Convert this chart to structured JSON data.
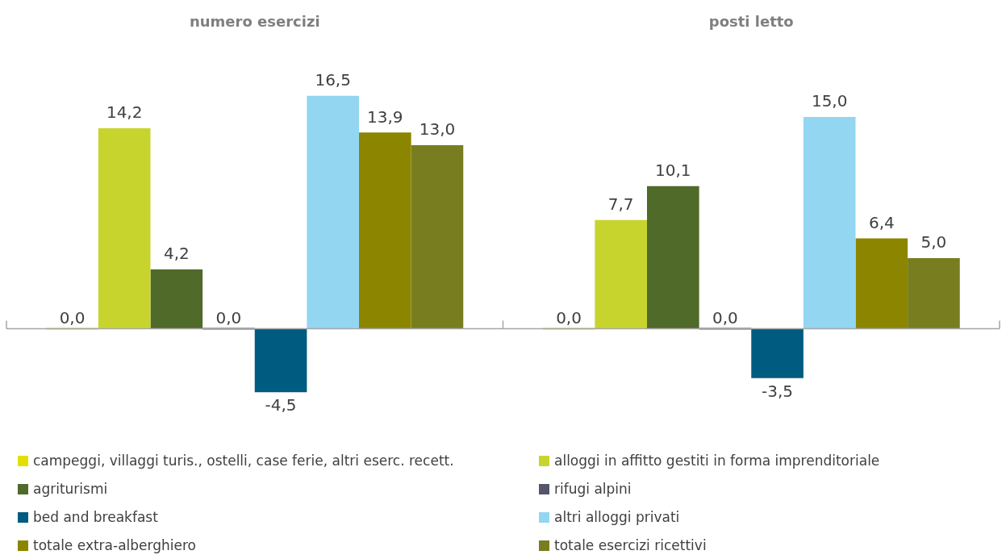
{
  "chart_data": {
    "type": "bar",
    "categories": [
      "numero esercizi",
      "posti letto"
    ],
    "tick_labels": "x",
    "legend": "bottom",
    "series": [
      {
        "name": "campeggi, villaggi turis., ostelli, case ferie, altri eserc. recett.",
        "color": "#e3df00",
        "values": [
          0.0,
          0.0
        ],
        "value_labels": [
          "0,0",
          "0,0"
        ]
      },
      {
        "name": "alloggi in affitto gestiti in forma imprenditoriale",
        "color": "#c8d42e",
        "values": [
          14.2,
          7.7
        ],
        "value_labels": [
          "14,2",
          "7,7"
        ]
      },
      {
        "name": "agriturismi",
        "color": "#4f6a29",
        "values": [
          4.2,
          10.1
        ],
        "value_labels": [
          "4,2",
          "10,1"
        ]
      },
      {
        "name": "rifugi alpini",
        "color": "#55566b",
        "values": [
          0.0,
          0.0
        ],
        "value_labels": [
          "0,0",
          "0,0"
        ]
      },
      {
        "name": "bed and breakfast",
        "color": "#005b80",
        "values": [
          -4.5,
          -3.5
        ],
        "value_labels": [
          "-4,5",
          "-3,5"
        ]
      },
      {
        "name": "altri alloggi privati",
        "color": "#93d6f1",
        "values": [
          16.5,
          15.0
        ],
        "value_labels": [
          "16,5",
          "15,0"
        ]
      },
      {
        "name": "totale extra-alberghiero",
        "color": "#8b8500",
        "values": [
          13.9,
          6.4
        ],
        "value_labels": [
          "13,9",
          "6,4"
        ]
      },
      {
        "name": "totale esercizi ricettivi",
        "color": "#787d1f",
        "values": [
          13.0,
          5.0
        ],
        "value_labels": [
          "13,0",
          "5,0"
        ]
      }
    ]
  }
}
